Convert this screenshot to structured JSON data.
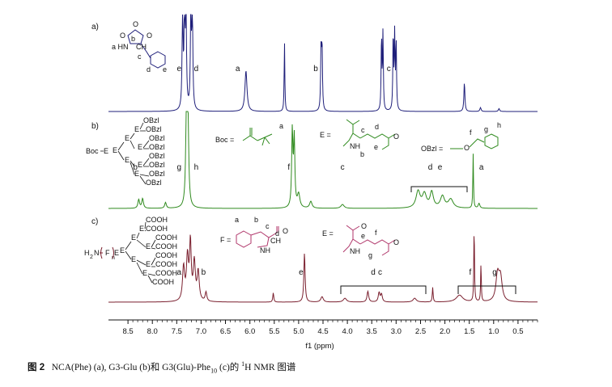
{
  "chart_data": {
    "type": "line",
    "title": "",
    "xlabel": "f1 (ppm)",
    "ylabel": "",
    "xlim": [
      8.9,
      0.1
    ],
    "xticks": [
      "8.5",
      "8.0",
      "7.5",
      "7.0",
      "6.5",
      "6.0",
      "5.5",
      "5.0",
      "4.5",
      "4.0",
      "3.5",
      "3.0",
      "2.5",
      "2.0",
      "1.5",
      "1.0",
      "0.5"
    ],
    "grid": false,
    "series": [
      {
        "panel": "a)",
        "color": "#1f1f7a",
        "peaks": [
          {
            "ppm": 7.38,
            "h": 1.0,
            "w": 0.012
          },
          {
            "ppm": 7.34,
            "h": 1.0,
            "w": 0.012
          },
          {
            "ppm": 7.31,
            "h": 1.0,
            "w": 0.012
          },
          {
            "ppm": 7.21,
            "h": 1.0,
            "w": 0.012
          },
          {
            "ppm": 7.18,
            "h": 1.0,
            "w": 0.012
          },
          {
            "ppm": 6.08,
            "h": 0.42,
            "w": 0.025
          },
          {
            "ppm": 5.29,
            "h": 0.72,
            "w": 0.008
          },
          {
            "ppm": 4.54,
            "h": 0.62,
            "w": 0.01
          },
          {
            "ppm": 4.52,
            "h": 0.66,
            "w": 0.01
          },
          {
            "ppm": 3.3,
            "h": 0.78,
            "w": 0.009
          },
          {
            "ppm": 3.27,
            "h": 0.8,
            "w": 0.009
          },
          {
            "ppm": 3.06,
            "h": 0.8,
            "w": 0.009
          },
          {
            "ppm": 3.03,
            "h": 0.76,
            "w": 0.009
          },
          {
            "ppm": 3.0,
            "h": 0.72,
            "w": 0.009
          },
          {
            "ppm": 1.6,
            "h": 0.3,
            "w": 0.012
          },
          {
            "ppm": 1.27,
            "h": 0.04,
            "w": 0.015
          },
          {
            "ppm": 0.89,
            "h": 0.03,
            "w": 0.015
          }
        ],
        "labels": [
          {
            "text": "e",
            "ppm": 7.45
          },
          {
            "text": "d",
            "ppm": 7.1
          },
          {
            "text": "a",
            "ppm": 6.25
          },
          {
            "text": "b",
            "ppm": 4.65
          },
          {
            "text": "c",
            "ppm": 3.15
          }
        ]
      },
      {
        "panel": "b)",
        "color": "#2f8a1e",
        "peaks": [
          {
            "ppm": 8.28,
            "h": 0.09,
            "w": 0.02
          },
          {
            "ppm": 8.2,
            "h": 0.1,
            "w": 0.02
          },
          {
            "ppm": 7.73,
            "h": 0.06,
            "w": 0.02
          },
          {
            "ppm": 7.3,
            "h": 1.0,
            "w": 0.018
          },
          {
            "ppm": 7.27,
            "h": 0.85,
            "w": 0.018
          },
          {
            "ppm": 5.13,
            "h": 0.78,
            "w": 0.015
          },
          {
            "ppm": 5.09,
            "h": 0.7,
            "w": 0.015
          },
          {
            "ppm": 5.0,
            "h": 0.14,
            "w": 0.03
          },
          {
            "ppm": 4.75,
            "h": 0.07,
            "w": 0.03
          },
          {
            "ppm": 4.1,
            "h": 0.04,
            "w": 0.04
          },
          {
            "ppm": 2.55,
            "h": 0.17,
            "w": 0.05
          },
          {
            "ppm": 2.42,
            "h": 0.14,
            "w": 0.05
          },
          {
            "ppm": 2.27,
            "h": 0.16,
            "w": 0.04
          },
          {
            "ppm": 2.05,
            "h": 0.12,
            "w": 0.05
          },
          {
            "ppm": 1.88,
            "h": 0.09,
            "w": 0.06
          },
          {
            "ppm": 1.42,
            "h": 0.56,
            "w": 0.008
          },
          {
            "ppm": 1.3,
            "h": 0.05,
            "w": 0.02
          }
        ],
        "labels": [
          {
            "text": "b",
            "ppm": 8.35
          },
          {
            "text": "g",
            "ppm": 7.45
          },
          {
            "text": "h",
            "ppm": 7.1
          },
          {
            "text": "f",
            "ppm": 5.2
          },
          {
            "text": "c",
            "ppm": 4.1
          },
          {
            "text": "d",
            "ppm": 2.3
          },
          {
            "text": "e",
            "ppm": 2.1
          },
          {
            "text": "a",
            "ppm": 1.25
          }
        ]
      },
      {
        "panel": "c)",
        "color": "#7a1f2e",
        "peaks": [
          {
            "ppm": 7.36,
            "h": 0.44,
            "w": 0.025
          },
          {
            "ppm": 7.28,
            "h": 0.56,
            "w": 0.025
          },
          {
            "ppm": 7.22,
            "h": 0.74,
            "w": 0.02
          },
          {
            "ppm": 7.14,
            "h": 0.5,
            "w": 0.025
          },
          {
            "ppm": 7.06,
            "h": 0.38,
            "w": 0.025
          },
          {
            "ppm": 6.9,
            "h": 0.12,
            "w": 0.02
          },
          {
            "ppm": 5.52,
            "h": 0.12,
            "w": 0.012
          },
          {
            "ppm": 4.88,
            "h": 0.64,
            "w": 0.015
          },
          {
            "ppm": 4.52,
            "h": 0.07,
            "w": 0.03
          },
          {
            "ppm": 4.05,
            "h": 0.05,
            "w": 0.04
          },
          {
            "ppm": 3.58,
            "h": 0.14,
            "w": 0.02
          },
          {
            "ppm": 3.35,
            "h": 0.12,
            "w": 0.02
          },
          {
            "ppm": 3.3,
            "h": 0.1,
            "w": 0.02
          },
          {
            "ppm": 2.62,
            "h": 0.05,
            "w": 0.04
          },
          {
            "ppm": 2.25,
            "h": 0.19,
            "w": 0.01
          },
          {
            "ppm": 1.7,
            "h": 0.09,
            "w": 0.08
          },
          {
            "ppm": 1.4,
            "h": 1.0,
            "w": 0.008
          },
          {
            "ppm": 1.26,
            "h": 0.5,
            "w": 0.008
          },
          {
            "ppm": 0.92,
            "h": 0.34,
            "w": 0.04
          },
          {
            "ppm": 0.86,
            "h": 0.3,
            "w": 0.04
          }
        ],
        "labels": [
          {
            "text": "a",
            "ppm": 7.45
          },
          {
            "text": "b",
            "ppm": 6.95
          },
          {
            "text": "e",
            "ppm": 4.95
          },
          {
            "text": "d",
            "ppm": 3.47
          },
          {
            "text": "c",
            "ppm": 3.33
          },
          {
            "text": "f",
            "ppm": 1.48
          },
          {
            "text": "g",
            "ppm": 0.98
          }
        ]
      }
    ]
  },
  "structures": {
    "a": {
      "atoms": [
        "O",
        "O",
        "O",
        "a HN",
        "b",
        "CH",
        "c",
        "d",
        "e"
      ]
    },
    "b": {
      "dendron": [
        "OBzl",
        "OBzl",
        "OBzl",
        "OBzl",
        "OBzl",
        "OBzl",
        "OBzl",
        "OBzl",
        "E",
        "E",
        "E",
        "E",
        "E",
        "E",
        "E",
        "Boc",
        "E"
      ],
      "boc_label": "Boc =",
      "boc_letter": "a",
      "e_label": "E =",
      "e_letters": [
        "c",
        "d",
        "NH",
        "b",
        "e",
        "O"
      ],
      "obzl_label": "OBzl =",
      "obzl_letters": [
        "f",
        "O",
        "g",
        "h"
      ]
    },
    "c": {
      "dendron": [
        "COOH",
        "COOH",
        "COOH",
        "COOH",
        "COOH",
        "COOH",
        "COOH",
        "COOH",
        "E",
        "E",
        "E",
        "E",
        "E",
        "E",
        "E"
      ],
      "head": {
        "h2n": "H",
        "n2": "2",
        "n": "N",
        "f": "F",
        "sub": "n",
        "e": "E"
      },
      "f_label": "F =",
      "f_letters": [
        "a",
        "b",
        "c",
        "d",
        "CH",
        "NH",
        "O"
      ],
      "e_label": "E =",
      "e_letters": [
        "O",
        "e",
        "f",
        "NH",
        "g",
        "O"
      ]
    }
  },
  "caption": {
    "fig": "图 2",
    "pre": "NCA(Phe) (a), G3-Glu (b)和 G3(Glu)-Phe",
    "sub": "10",
    "mid": " (c)的 ",
    "sup": "1",
    "post": "H NMR  图谱"
  }
}
